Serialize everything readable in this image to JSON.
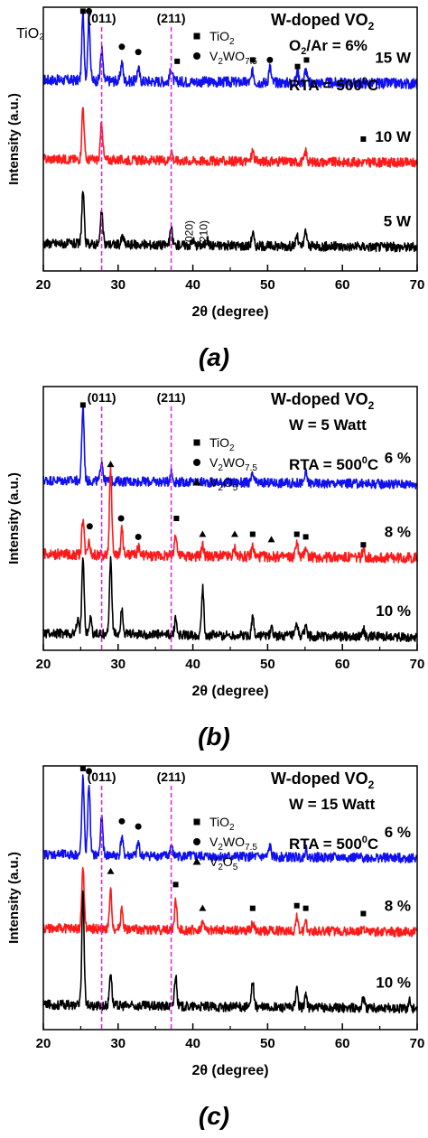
{
  "chart_data": [
    {
      "type": "line",
      "panel_label": "(a)",
      "xlabel": "2θ (degree)",
      "ylabel": "Intensity (a.u.)",
      "xlim": [
        20,
        70
      ],
      "xticks": [
        20,
        30,
        40,
        50,
        60,
        70
      ],
      "ref_lines": [
        {
          "label": "(011)",
          "x": 27.8
        },
        {
          "label": "(211)",
          "x": 37.1
        }
      ],
      "title": "W-doped VO",
      "title_sub": "2",
      "condition_lines": [
        {
          "text": "O",
          "sub": "2",
          "rest": "/Ar = 6%"
        },
        {
          "text": "RTA = 500",
          "sup": "0",
          "rest": "C"
        }
      ],
      "legend": [
        {
          "symbol": "square",
          "text": "TiO",
          "sub": "2"
        },
        {
          "symbol": "circle",
          "text": "V",
          "sub": "2",
          "text2": "WO",
          "sub2": "7.5"
        }
      ],
      "side_label": "TiO₂",
      "plane_labels": [
        "(020)",
        "(210)"
      ],
      "series": [
        {
          "name": "15 W",
          "color": "#1010f0",
          "baseline": 0.72,
          "noise": 0.02,
          "peaks": [
            [
              25.3,
              0.25
            ],
            [
              26.1,
              0.24
            ],
            [
              27.8,
              0.12
            ],
            [
              30.5,
              0.07
            ],
            [
              32.7,
              0.05
            ],
            [
              37.1,
              0.05
            ],
            [
              48.0,
              0.04
            ],
            [
              50.3,
              0.06
            ],
            [
              54.0,
              0.04
            ],
            [
              55.1,
              0.05
            ]
          ]
        },
        {
          "name": "10 W",
          "color": "#ff1a1a",
          "baseline": 0.42,
          "noise": 0.018,
          "peaks": [
            [
              25.3,
              0.2
            ],
            [
              27.8,
              0.14
            ],
            [
              37.1,
              0.04
            ],
            [
              48.0,
              0.04
            ],
            [
              55.1,
              0.04
            ]
          ]
        },
        {
          "name": "5 W",
          "color": "#000000",
          "baseline": 0.1,
          "noise": 0.018,
          "peaks": [
            [
              25.3,
              0.2
            ],
            [
              27.8,
              0.12
            ],
            [
              30.6,
              0.03
            ],
            [
              37.1,
              0.06
            ],
            [
              40.0,
              0.02
            ],
            [
              41.9,
              0.02
            ],
            [
              48.0,
              0.05
            ],
            [
              53.9,
              0.04
            ],
            [
              55.1,
              0.06
            ]
          ]
        }
      ],
      "markers": [
        {
          "symbol": "square",
          "x": 25.3,
          "y": 0.985
        },
        {
          "symbol": "circle",
          "x": 26.1,
          "y": 0.985
        },
        {
          "symbol": "circle",
          "x": 30.5,
          "y": 0.85
        },
        {
          "symbol": "circle",
          "x": 32.7,
          "y": 0.83
        },
        {
          "symbol": "square",
          "x": 37.9,
          "y": 0.795
        },
        {
          "symbol": "square",
          "x": 48.0,
          "y": 0.8
        },
        {
          "symbol": "circle",
          "x": 50.3,
          "y": 0.8
        },
        {
          "symbol": "square",
          "x": 54.0,
          "y": 0.775
        },
        {
          "symbol": "square",
          "x": 55.2,
          "y": 0.8
        },
        {
          "symbol": "square",
          "x": 62.8,
          "y": 0.5
        }
      ]
    },
    {
      "type": "line",
      "panel_label": "(b)",
      "xlabel": "2θ (degree)",
      "ylabel": "Intensity (a.u.)",
      "xlim": [
        20,
        70
      ],
      "xticks": [
        20,
        30,
        40,
        50,
        60,
        70
      ],
      "ref_lines": [
        {
          "label": "(011)",
          "x": 27.8
        },
        {
          "label": "(211)",
          "x": 37.1
        }
      ],
      "title": "W-doped VO",
      "title_sub": "2",
      "condition_lines": [
        {
          "text": "W = 5 Watt"
        },
        {
          "text": "RTA = 500",
          "sup": "0",
          "rest": "C"
        }
      ],
      "legend": [
        {
          "symbol": "square",
          "text": "TiO",
          "sub": "2"
        },
        {
          "symbol": "circle",
          "text": "V",
          "sub": "2",
          "text2": "WO",
          "sub2": "7.5"
        },
        {
          "symbol": "triangle",
          "text": "V",
          "sub": "2",
          "text2": "O",
          "sub2": "5"
        }
      ],
      "series": [
        {
          "name": "6 %",
          "color": "#1010f0",
          "baseline": 0.64,
          "noise": 0.018,
          "peaks": [
            [
              25.3,
              0.28
            ],
            [
              27.8,
              0.08
            ],
            [
              37.1,
              0.04
            ],
            [
              48.0,
              0.03
            ],
            [
              55.1,
              0.04
            ]
          ]
        },
        {
          "name": "8 %",
          "color": "#ff1a1a",
          "baseline": 0.36,
          "noise": 0.02,
          "peaks": [
            [
              25.3,
              0.14
            ],
            [
              26.1,
              0.06
            ],
            [
              29.0,
              0.32
            ],
            [
              30.5,
              0.1
            ],
            [
              32.7,
              0.03
            ],
            [
              37.7,
              0.09
            ],
            [
              41.3,
              0.04
            ],
            [
              45.6,
              0.03
            ],
            [
              48.0,
              0.04
            ],
            [
              53.9,
              0.06
            ],
            [
              55.1,
              0.04
            ],
            [
              62.8,
              0.03
            ]
          ]
        },
        {
          "name": "10 %",
          "color": "#000000",
          "baseline": 0.06,
          "noise": 0.018,
          "peaks": [
            [
              24.6,
              0.05
            ],
            [
              25.3,
              0.3
            ],
            [
              26.3,
              0.06
            ],
            [
              29.0,
              0.29
            ],
            [
              30.5,
              0.1
            ],
            [
              37.7,
              0.06
            ],
            [
              41.3,
              0.18
            ],
            [
              48.0,
              0.07
            ],
            [
              50.5,
              0.03
            ],
            [
              53.9,
              0.04
            ],
            [
              55.1,
              0.04
            ],
            [
              62.8,
              0.03
            ]
          ]
        }
      ],
      "markers": [
        {
          "symbol": "square",
          "x": 25.3,
          "y": 0.93
        },
        {
          "symbol": "triangle",
          "x": 29.0,
          "y": 0.705
        },
        {
          "symbol": "circle",
          "x": 26.2,
          "y": 0.47
        },
        {
          "symbol": "circle",
          "x": 30.4,
          "y": 0.5
        },
        {
          "symbol": "circle",
          "x": 32.7,
          "y": 0.43
        },
        {
          "symbol": "square",
          "x": 37.8,
          "y": 0.5
        },
        {
          "symbol": "triangle",
          "x": 41.3,
          "y": 0.44
        },
        {
          "symbol": "triangle",
          "x": 45.6,
          "y": 0.44
        },
        {
          "symbol": "square",
          "x": 48.0,
          "y": 0.44
        },
        {
          "symbol": "triangle",
          "x": 50.5,
          "y": 0.42
        },
        {
          "symbol": "square",
          "x": 53.9,
          "y": 0.44
        },
        {
          "symbol": "square",
          "x": 55.1,
          "y": 0.43
        },
        {
          "symbol": "square",
          "x": 62.8,
          "y": 0.4
        }
      ]
    },
    {
      "type": "line",
      "panel_label": "(c)",
      "xlabel": "2θ (degree)",
      "ylabel": "Intensity (a.u.)",
      "xlim": [
        20,
        70
      ],
      "xticks": [
        20,
        30,
        40,
        50,
        60,
        70
      ],
      "ref_lines": [
        {
          "label": "(011)",
          "x": 27.8
        },
        {
          "label": "(211)",
          "x": 37.1
        }
      ],
      "title": "W-doped VO",
      "title_sub": "2",
      "condition_lines": [
        {
          "text": "W = 15 Watt"
        },
        {
          "text": "RTA = 500",
          "sup": "0",
          "rest": "C"
        }
      ],
      "legend": [
        {
          "symbol": "square",
          "text": "TiO",
          "sub": "2"
        },
        {
          "symbol": "circle",
          "text": "V",
          "sub": "2",
          "text2": "WO",
          "sub2": "7.5"
        },
        {
          "symbol": "triangle",
          "text": "V",
          "sub": "2",
          "text2": "O",
          "sub2": "5"
        }
      ],
      "series": [
        {
          "name": "6 %",
          "color": "#1010f0",
          "baseline": 0.66,
          "noise": 0.018,
          "peaks": [
            [
              25.3,
              0.29
            ],
            [
              26.1,
              0.27
            ],
            [
              27.8,
              0.14
            ],
            [
              30.5,
              0.07
            ],
            [
              32.7,
              0.05
            ],
            [
              37.1,
              0.04
            ],
            [
              50.3,
              0.04
            ],
            [
              55.1,
              0.03
            ]
          ]
        },
        {
          "name": "8 %",
          "color": "#ff1a1a",
          "baseline": 0.38,
          "noise": 0.018,
          "peaks": [
            [
              25.3,
              0.23
            ],
            [
              29.0,
              0.14
            ],
            [
              30.5,
              0.08
            ],
            [
              37.7,
              0.11
            ],
            [
              41.3,
              0.03
            ],
            [
              48.0,
              0.03
            ],
            [
              53.9,
              0.05
            ],
            [
              55.1,
              0.03
            ],
            [
              62.8,
              0.02
            ]
          ]
        },
        {
          "name": "10 %",
          "color": "#000000",
          "baseline": 0.09,
          "noise": 0.018,
          "peaks": [
            [
              25.3,
              0.42
            ],
            [
              29.0,
              0.13
            ],
            [
              37.7,
              0.12
            ],
            [
              48.0,
              0.1
            ],
            [
              53.9,
              0.07
            ],
            [
              55.1,
              0.05
            ],
            [
              62.8,
              0.04
            ],
            [
              69.0,
              0.03
            ]
          ]
        }
      ],
      "markers": [
        {
          "symbol": "square",
          "x": 25.3,
          "y": 0.99
        },
        {
          "symbol": "circle",
          "x": 26.1,
          "y": 0.98
        },
        {
          "symbol": "circle",
          "x": 30.5,
          "y": 0.79
        },
        {
          "symbol": "circle",
          "x": 32.7,
          "y": 0.77
        },
        {
          "symbol": "triangle",
          "x": 29.0,
          "y": 0.6
        },
        {
          "symbol": "square",
          "x": 37.7,
          "y": 0.55
        },
        {
          "symbol": "triangle",
          "x": 41.3,
          "y": 0.46
        },
        {
          "symbol": "square",
          "x": 48.0,
          "y": 0.46
        },
        {
          "symbol": "square",
          "x": 53.9,
          "y": 0.47
        },
        {
          "symbol": "square",
          "x": 55.1,
          "y": 0.46
        },
        {
          "symbol": "square",
          "x": 62.8,
          "y": 0.44
        }
      ]
    }
  ]
}
